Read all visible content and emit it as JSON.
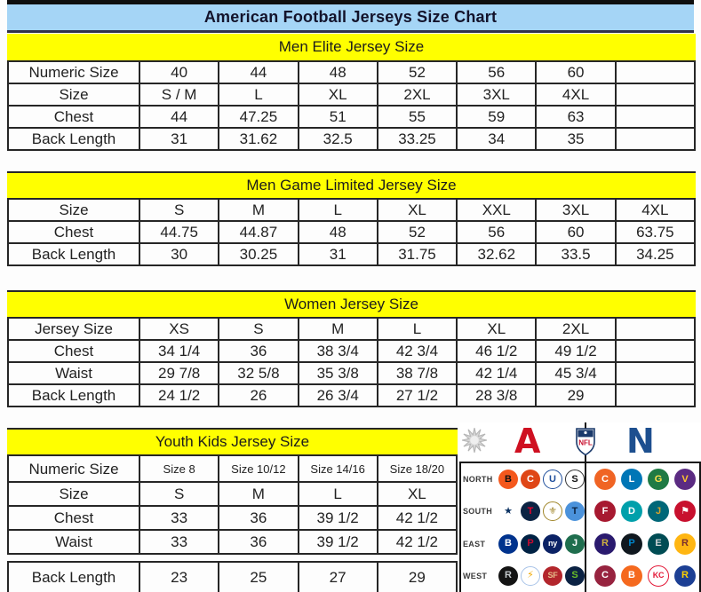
{
  "title": "American Football Jerseys Size Chart",
  "colors": {
    "title_bar_bg": "#a5d5f6",
    "section_header_bg": "#ffff00",
    "table_border": "#262626",
    "afc_red": "#cf1021",
    "nfc_blue": "#1d4f8f"
  },
  "tables": [
    {
      "header": "Men Elite Jersey Size",
      "rows": [
        {
          "label": "Numeric Size",
          "cells": [
            "40",
            "44",
            "48",
            "52",
            "56",
            "60",
            ""
          ]
        },
        {
          "label": "Size",
          "cells": [
            "S / M",
            "L",
            "XL",
            "2XL",
            "3XL",
            "4XL",
            ""
          ]
        },
        {
          "label": "Chest",
          "cells": [
            "44",
            "47.25",
            "51",
            "55",
            "59",
            "63",
            ""
          ]
        },
        {
          "label": "Back Length",
          "cells": [
            "31",
            "31.62",
            "32.5",
            "33.25",
            "34",
            "35",
            ""
          ]
        }
      ]
    },
    {
      "header": "Men Game Limited Jersey Size",
      "rows": [
        {
          "label": "Size",
          "cells": [
            "S",
            "M",
            "L",
            "XL",
            "XXL",
            "3XL",
            "4XL"
          ]
        },
        {
          "label": "Chest",
          "cells": [
            "44.75",
            "44.87",
            "48",
            "52",
            "56",
            "60",
            "63.75"
          ]
        },
        {
          "label": "Back Length",
          "cells": [
            "30",
            "30.25",
            "31",
            "31.75",
            "32.62",
            "33.5",
            "34.25"
          ]
        }
      ]
    },
    {
      "header": "Women Jersey Size",
      "rows": [
        {
          "label": "Jersey Size",
          "cells": [
            "XS",
            "S",
            "M",
            "L",
            "XL",
            "2XL",
            ""
          ]
        },
        {
          "label": "Chest",
          "cells": [
            "34 1/4",
            "36",
            "38 3/4",
            "42 3/4",
            "46 1/2",
            "49 1/2",
            ""
          ]
        },
        {
          "label": "Waist",
          "cells": [
            "29 7/8",
            "32 5/8",
            "35 3/8",
            "38 7/8",
            "42 1/4",
            "45 3/4",
            ""
          ]
        },
        {
          "label": "Back Length",
          "cells": [
            "24 1/2",
            "26",
            "26 3/4",
            "27 1/2",
            "28 3/8",
            "29",
            ""
          ]
        }
      ]
    },
    {
      "header": "Youth Kids Jersey Size",
      "rows": [
        {
          "label": "Numeric Size",
          "small": true,
          "cells": [
            "Size 8",
            "Size 10/12",
            "Size 14/16",
            "Size 18/20"
          ]
        },
        {
          "label": "Size",
          "cells": [
            "S",
            "M",
            "L",
            "XL"
          ]
        },
        {
          "label": "Chest",
          "cells": [
            "33",
            "36",
            "39 1/2",
            "42 1/2"
          ]
        },
        {
          "label": "Waist",
          "cells": [
            "33",
            "36",
            "39 1/2",
            "42 1/2"
          ]
        },
        {
          "label": "Back Length",
          "cells": [
            "23",
            "25",
            "27",
            "29"
          ]
        }
      ]
    }
  ],
  "logo_panel": {
    "sunburst_icon": "sunburst-icon",
    "afc_label": "A",
    "nfl_label": "NFL",
    "nfc_label": "N",
    "divisions": [
      {
        "label": "NORTH",
        "afc": [
          {
            "name": "bengals",
            "abbr": "B",
            "bg": "#f4581d",
            "fg": "#111111"
          },
          {
            "name": "browns",
            "abbr": "C",
            "bg": "#df4617",
            "fg": "#ffffff"
          },
          {
            "name": "colts",
            "abbr": "U",
            "bg": "#ffffff",
            "fg": "#1f4e9c",
            "bd": "#1f4e9c"
          },
          {
            "name": "steelers",
            "abbr": "S",
            "bg": "#ffffff",
            "fg": "#111111",
            "bd": "#333333"
          }
        ],
        "nfc": [
          {
            "name": "bears",
            "abbr": "C",
            "bg": "#f06424",
            "fg": "#ffffff"
          },
          {
            "name": "lions",
            "abbr": "L",
            "bg": "#0076b6",
            "fg": "#ffffff"
          },
          {
            "name": "packers",
            "abbr": "G",
            "bg": "#1f7a44",
            "fg": "#ffe24d"
          },
          {
            "name": "vikings",
            "abbr": "V",
            "bg": "#5b2b82",
            "fg": "#ffc62f"
          }
        ]
      },
      {
        "label": "SOUTH",
        "afc": [
          {
            "name": "cowboys",
            "abbr": "★",
            "bg": "#ffffff",
            "fg": "#0a3161"
          },
          {
            "name": "texans",
            "abbr": "T",
            "bg": "#0b2343",
            "fg": "#e4002b"
          },
          {
            "name": "saints",
            "abbr": "⚜",
            "bg": "#ffffff",
            "fg": "#a08629",
            "bd": "#a08629"
          },
          {
            "name": "titans",
            "abbr": "T",
            "bg": "#4b92db",
            "fg": "#0c2340"
          }
        ],
        "nfc": [
          {
            "name": "falcons",
            "abbr": "F",
            "bg": "#a71930",
            "fg": "#ffffff"
          },
          {
            "name": "dolphins",
            "abbr": "D",
            "bg": "#00a0ab",
            "fg": "#ffffff"
          },
          {
            "name": "jaguars",
            "abbr": "J",
            "bg": "#006778",
            "fg": "#d7a22a"
          },
          {
            "name": "buccaneers",
            "abbr": "⚑",
            "bg": "#c8102e",
            "fg": "#ffffff"
          }
        ]
      },
      {
        "label": "EAST",
        "afc": [
          {
            "name": "bills",
            "abbr": "B",
            "bg": "#00338d",
            "fg": "#ffffff"
          },
          {
            "name": "patriots",
            "abbr": "P",
            "bg": "#002244",
            "fg": "#c60c30"
          },
          {
            "name": "giants",
            "abbr": "ny",
            "bg": "#0b2265",
            "fg": "#ffffff"
          },
          {
            "name": "jets",
            "abbr": "J",
            "bg": "#1f6e4e",
            "fg": "#ffffff"
          }
        ],
        "nfc": [
          {
            "name": "ravens",
            "abbr": "R",
            "bg": "#2a1a6e",
            "fg": "#d0b240"
          },
          {
            "name": "panthers",
            "abbr": "P",
            "bg": "#10181f",
            "fg": "#0085ca"
          },
          {
            "name": "eagles",
            "abbr": "E",
            "bg": "#004c54",
            "fg": "#cfd4d6"
          },
          {
            "name": "redskins",
            "abbr": "R",
            "bg": "#ffb612",
            "fg": "#7a2e2e"
          }
        ]
      },
      {
        "label": "WEST",
        "afc": [
          {
            "name": "raiders",
            "abbr": "R",
            "bg": "#141414",
            "fg": "#c4c9cc"
          },
          {
            "name": "chargers",
            "abbr": "⚡",
            "bg": "#ffffff",
            "fg": "#f0a800",
            "bd": "#a8c3e8"
          },
          {
            "name": "49ers",
            "abbr": "SF",
            "bg": "#b3262c",
            "fg": "#e6be8a"
          },
          {
            "name": "seahawks",
            "abbr": "S",
            "bg": "#0b2243",
            "fg": "#69be28"
          }
        ],
        "nfc": [
          {
            "name": "cardinals",
            "abbr": "C",
            "bg": "#97233f",
            "fg": "#ffffff"
          },
          {
            "name": "broncos",
            "abbr": "B",
            "bg": "#f5691e",
            "fg": "#ffffff"
          },
          {
            "name": "chiefs",
            "abbr": "KC",
            "bg": "#ffffff",
            "fg": "#e31837",
            "bd": "#e31837"
          },
          {
            "name": "rams",
            "abbr": "R",
            "bg": "#1c3f94",
            "fg": "#ffd100"
          }
        ]
      }
    ]
  }
}
